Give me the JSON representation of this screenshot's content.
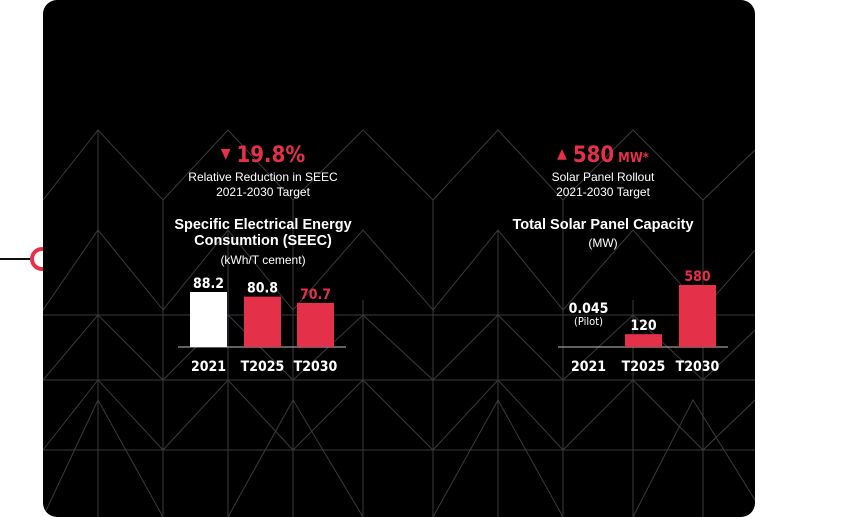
{
  "colors": {
    "accent": "#e5304a",
    "background": "#000000",
    "baseline_bar": "#ffffff"
  },
  "left": {
    "arrow": "▼",
    "headline_value": "19.8%",
    "headline_line1": "Relative Reduction in SEEC",
    "headline_line2": "2021-2030 Target",
    "title_line1": "Specific Electrical Energy",
    "title_line2": "Consumtion (SEEC)",
    "unit": "(kWh/T cement)"
  },
  "right": {
    "arrow": "▲",
    "headline_value": "580",
    "headline_unit": "MW*",
    "headline_line1": "Solar Panel Rollout",
    "headline_line2": "2021-2030 Target",
    "title": "Total Solar Panel Capacity",
    "unit": "(MW)"
  },
  "chart_data": [
    {
      "type": "bar",
      "title": "Specific Electrical Energy Consumtion (SEEC)",
      "ylabel": "(kWh/T cement)",
      "categories": [
        "2021",
        "T2025",
        "T2030"
      ],
      "values": [
        88.2,
        80.8,
        70.7
      ],
      "value_labels": [
        "88.2",
        "80.8",
        "70.7"
      ],
      "label_colors": [
        "#ffffff",
        "#ffffff",
        "#e5304a"
      ],
      "bar_colors": [
        "#ffffff",
        "#e5304a",
        "#e5304a"
      ],
      "ylim": [
        0,
        88.2
      ]
    },
    {
      "type": "bar",
      "title": "Total Solar Panel Capacity",
      "ylabel": "(MW)",
      "categories": [
        "2021",
        "T2025",
        "T2030"
      ],
      "values": [
        0.045,
        120,
        580
      ],
      "value_labels": [
        "0.045",
        "120",
        "580"
      ],
      "value_sublabels": [
        "(Pilot)",
        "",
        ""
      ],
      "label_colors": [
        "#ffffff",
        "#ffffff",
        "#e5304a"
      ],
      "bar_colors": [
        "#e5304a",
        "#e5304a",
        "#e5304a"
      ],
      "ylim": [
        0,
        580
      ]
    }
  ]
}
